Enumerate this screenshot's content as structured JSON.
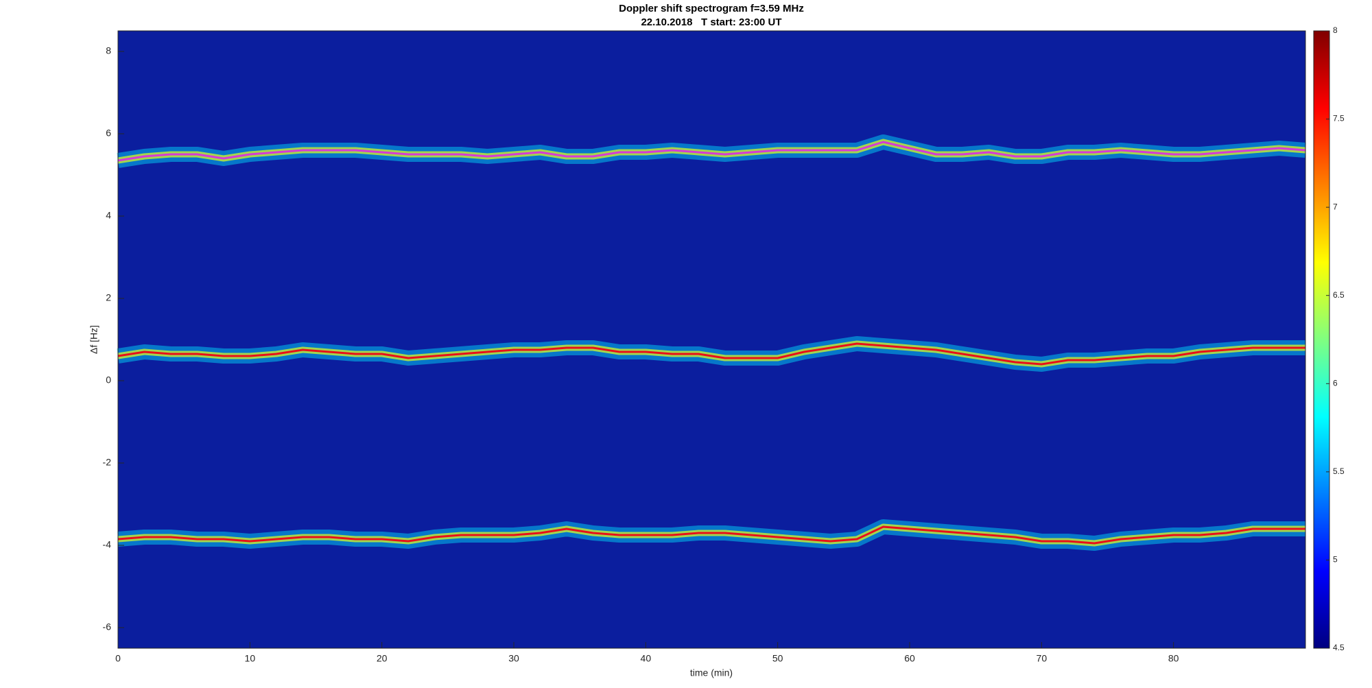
{
  "chart_data": {
    "type": "spectrogram",
    "title": "Doppler shift spectrogram f=3.59 MHz",
    "subtitle": "22.10.2018   T start: 23:00 UT",
    "xlabel": "time (min)",
    "ylabel": "Δf [Hz]",
    "xlim": [
      0,
      90
    ],
    "ylim": [
      -6.5,
      8.5
    ],
    "xticks": [
      0,
      10,
      20,
      30,
      40,
      50,
      60,
      70,
      80
    ],
    "yticks": [
      -6,
      -4,
      -2,
      0,
      2,
      4,
      6,
      8
    ],
    "clim": [
      4.5,
      8
    ],
    "cticks": [
      4.5,
      5,
      5.5,
      6,
      6.5,
      7,
      7.5,
      8
    ],
    "colormap": "jet",
    "background": "#0b1e9e",
    "x": [
      0,
      2,
      4,
      6,
      8,
      10,
      12,
      14,
      16,
      18,
      20,
      22,
      24,
      26,
      28,
      30,
      32,
      34,
      36,
      38,
      40,
      42,
      44,
      46,
      48,
      50,
      52,
      54,
      56,
      58,
      60,
      62,
      64,
      66,
      68,
      70,
      72,
      74,
      76,
      78,
      80,
      82,
      84,
      86,
      88,
      90
    ],
    "series": [
      {
        "color": "#d63ad6",
        "values": [
          5.35,
          5.45,
          5.5,
          5.5,
          5.4,
          5.5,
          5.55,
          5.6,
          5.6,
          5.6,
          5.55,
          5.5,
          5.5,
          5.5,
          5.45,
          5.5,
          5.55,
          5.45,
          5.45,
          5.55,
          5.55,
          5.6,
          5.55,
          5.5,
          5.55,
          5.6,
          5.6,
          5.6,
          5.6,
          5.8,
          5.65,
          5.5,
          5.5,
          5.55,
          5.45,
          5.45,
          5.55,
          5.55,
          5.6,
          5.55,
          5.5,
          5.5,
          5.55,
          5.6,
          5.65,
          5.6
        ]
      },
      {
        "color": "#e8101a",
        "values": [
          0.6,
          0.7,
          0.65,
          0.65,
          0.6,
          0.6,
          0.65,
          0.75,
          0.7,
          0.65,
          0.65,
          0.55,
          0.6,
          0.65,
          0.7,
          0.75,
          0.75,
          0.8,
          0.8,
          0.7,
          0.7,
          0.65,
          0.65,
          0.55,
          0.55,
          0.55,
          0.7,
          0.8,
          0.9,
          0.85,
          0.8,
          0.75,
          0.65,
          0.55,
          0.45,
          0.4,
          0.5,
          0.5,
          0.55,
          0.6,
          0.6,
          0.7,
          0.75,
          0.8,
          0.8,
          0.8
        ]
      },
      {
        "color": "#e8101a",
        "values": [
          -3.85,
          -3.8,
          -3.8,
          -3.85,
          -3.85,
          -3.9,
          -3.85,
          -3.8,
          -3.8,
          -3.85,
          -3.85,
          -3.9,
          -3.8,
          -3.75,
          -3.75,
          -3.75,
          -3.7,
          -3.6,
          -3.7,
          -3.75,
          -3.75,
          -3.75,
          -3.7,
          -3.7,
          -3.75,
          -3.8,
          -3.85,
          -3.9,
          -3.85,
          -3.55,
          -3.6,
          -3.65,
          -3.7,
          -3.75,
          -3.8,
          -3.9,
          -3.9,
          -3.95,
          -3.85,
          -3.8,
          -3.75,
          -3.75,
          -3.7,
          -3.6,
          -3.6,
          -3.6
        ]
      }
    ]
  }
}
